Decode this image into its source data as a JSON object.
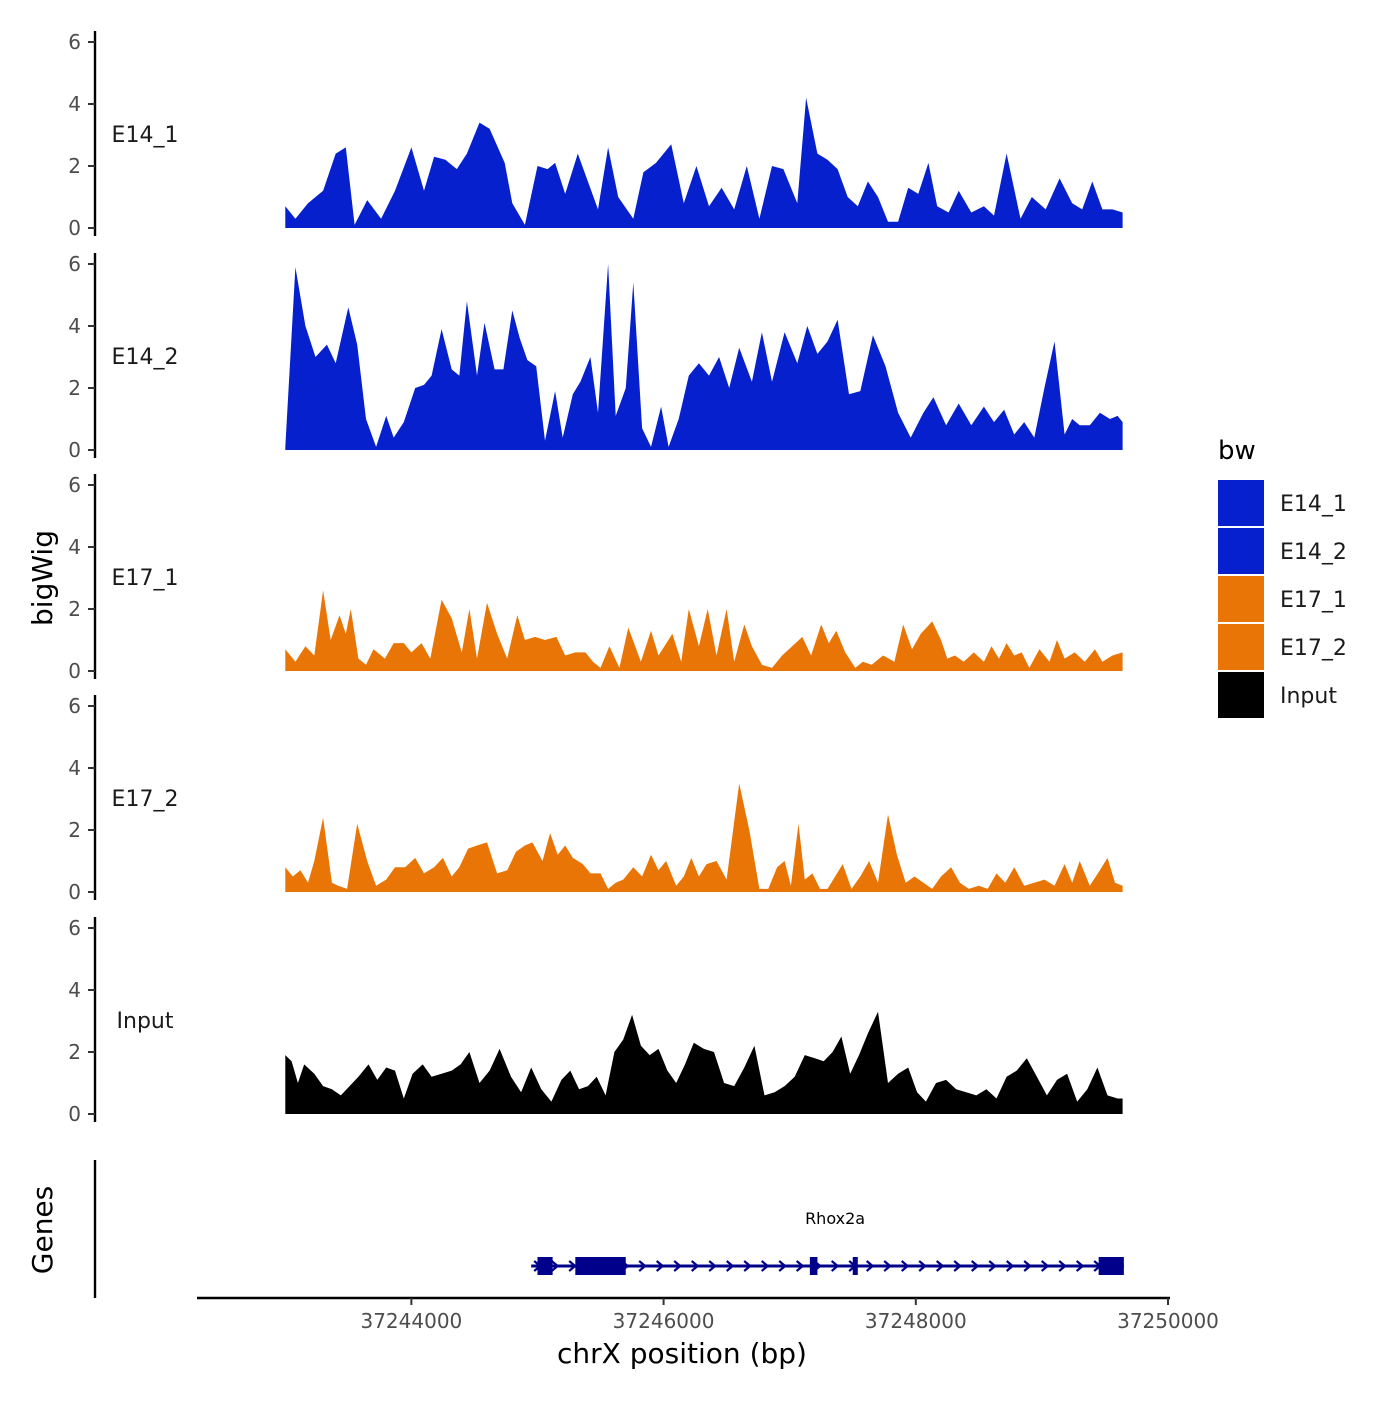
{
  "chart_data": {
    "type": "area",
    "ylabel": "bigWig",
    "genes_label": "Genes",
    "xlabel": "chrX position (bp)",
    "xlim": [
      37242300,
      37250000
    ],
    "ylim": [
      0,
      6
    ],
    "y_ticks": [
      0,
      2,
      4,
      6
    ],
    "x_ticks": [
      37244000,
      37246000,
      37248000,
      37250000
    ],
    "x_tick_labels": [
      "37244000",
      "37246000",
      "37248000",
      "37250000"
    ],
    "legend": {
      "title": "bw",
      "position": "right",
      "entries": [
        {
          "label": "E14_1",
          "color": "#0520CC"
        },
        {
          "label": "E14_2",
          "color": "#0520CC"
        },
        {
          "label": "E17_1",
          "color": "#E87506"
        },
        {
          "label": "E17_2",
          "color": "#E87506"
        },
        {
          "label": "Input",
          "color": "#000000"
        }
      ]
    },
    "series": [
      {
        "name": "E14_1",
        "color": "#0520CC",
        "x": [
          37243000,
          37243080,
          37243180,
          37243300,
          37243400,
          37243480,
          37243550,
          37243650,
          37243760,
          37243870,
          37244000,
          37244100,
          37244180,
          37244270,
          37244360,
          37244440,
          37244540,
          37244620,
          37244740,
          37244800,
          37244900,
          37245000,
          37245080,
          37245140,
          37245220,
          37245320,
          37245400,
          37245480,
          37245560,
          37245640,
          37245760,
          37245840,
          37245940,
          37246060,
          37246160,
          37246260,
          37246360,
          37246460,
          37246560,
          37246660,
          37246760,
          37246860,
          37246950,
          37247060,
          37247130,
          37247220,
          37247300,
          37247380,
          37247460,
          37247540,
          37247620,
          37247700,
          37247780,
          37247860,
          37247940,
          37248020,
          37248100,
          37248170,
          37248260,
          37248340,
          37248440,
          37248540,
          37248620,
          37248720,
          37248830,
          37248920,
          37249030,
          37249140,
          37249240,
          37249320,
          37249400,
          37249480,
          37249560,
          37249640
        ],
        "y": [
          0.7,
          0.3,
          0.8,
          1.2,
          2.4,
          2.6,
          0.1,
          0.9,
          0.3,
          1.2,
          2.6,
          1.2,
          2.3,
          2.2,
          1.9,
          2.4,
          3.4,
          3.2,
          2.1,
          0.8,
          0.1,
          2.0,
          1.9,
          2.1,
          1.1,
          2.4,
          1.5,
          0.6,
          2.6,
          1.0,
          0.3,
          1.8,
          2.1,
          2.7,
          0.8,
          2.0,
          0.7,
          1.3,
          0.6,
          2.0,
          0.3,
          2.0,
          1.9,
          0.8,
          4.2,
          2.4,
          2.2,
          1.9,
          1.0,
          0.7,
          1.5,
          1.0,
          0.2,
          0.2,
          1.3,
          1.1,
          2.1,
          0.7,
          0.5,
          1.2,
          0.5,
          0.7,
          0.4,
          2.4,
          0.3,
          1.0,
          0.6,
          1.6,
          0.8,
          0.6,
          1.5,
          0.6,
          0.6,
          0.5
        ]
      },
      {
        "name": "E14_2",
        "color": "#0520CC",
        "x": [
          37243000,
          37243080,
          37243160,
          37243240,
          37243330,
          37243400,
          37243500,
          37243570,
          37243640,
          37243720,
          37243800,
          37243860,
          37243940,
          37244030,
          37244100,
          37244160,
          37244240,
          37244320,
          37244380,
          37244440,
          37244520,
          37244580,
          37244660,
          37244730,
          37244800,
          37244860,
          37244920,
          37244990,
          37245060,
          37245140,
          37245200,
          37245280,
          37245340,
          37245420,
          37245480,
          37245560,
          37245620,
          37245700,
          37245760,
          37245830,
          37245900,
          37245980,
          37246040,
          37246120,
          37246200,
          37246280,
          37246360,
          37246440,
          37246520,
          37246600,
          37246700,
          37246780,
          37246860,
          37246960,
          37247060,
          37247140,
          37247220,
          37247300,
          37247380,
          37247470,
          37247560,
          37247660,
          37247760,
          37247860,
          37247960,
          37248060,
          37248140,
          37248240,
          37248340,
          37248440,
          37248540,
          37248620,
          37248700,
          37248780,
          37248860,
          37248940,
          37249020,
          37249100,
          37249180,
          37249240,
          37249300,
          37249380,
          37249460,
          37249540,
          37249600,
          37249640
        ],
        "y": [
          0.1,
          5.9,
          4.0,
          3.0,
          3.4,
          2.8,
          4.6,
          3.4,
          1.0,
          0.1,
          1.1,
          0.4,
          0.9,
          2.0,
          2.1,
          2.4,
          3.9,
          2.6,
          2.4,
          4.8,
          2.4,
          4.1,
          2.6,
          2.6,
          4.5,
          3.6,
          2.9,
          2.7,
          0.3,
          1.9,
          0.4,
          1.8,
          2.2,
          3.0,
          1.2,
          6.0,
          1.1,
          2.0,
          5.4,
          0.7,
          0.1,
          1.4,
          0.1,
          1.0,
          2.4,
          2.8,
          2.4,
          3.0,
          2.0,
          3.3,
          2.2,
          3.8,
          2.2,
          3.8,
          2.8,
          4.0,
          3.1,
          3.5,
          4.2,
          1.8,
          1.9,
          3.7,
          2.7,
          1.2,
          0.4,
          1.2,
          1.7,
          0.8,
          1.5,
          0.8,
          1.4,
          0.9,
          1.3,
          0.5,
          0.9,
          0.4,
          2.0,
          3.5,
          0.5,
          1.0,
          0.8,
          0.8,
          1.2,
          1.0,
          1.1,
          0.9
        ]
      },
      {
        "name": "E17_1",
        "color": "#E87506",
        "x": [
          37243000,
          37243080,
          37243160,
          37243230,
          37243300,
          37243360,
          37243430,
          37243480,
          37243520,
          37243580,
          37243640,
          37243700,
          37243790,
          37243860,
          37243940,
          37244000,
          37244080,
          37244150,
          37244240,
          37244320,
          37244400,
          37244460,
          37244520,
          37244600,
          37244680,
          37244760,
          37244840,
          37244900,
          37244980,
          37245060,
          37245150,
          37245220,
          37245300,
          37245380,
          37245440,
          37245500,
          37245570,
          37245650,
          37245720,
          37245820,
          37245900,
          37245960,
          37246070,
          37246140,
          37246200,
          37246280,
          37246350,
          37246420,
          37246500,
          37246560,
          37246640,
          37246700,
          37246780,
          37246860,
          37246940,
          37247020,
          37247100,
          37247170,
          37247250,
          37247310,
          37247370,
          37247440,
          37247520,
          37247580,
          37247650,
          37247740,
          37247830,
          37247900,
          37247970,
          37248040,
          37248130,
          37248200,
          37248250,
          37248310,
          37248380,
          37248460,
          37248540,
          37248600,
          37248660,
          37248720,
          37248780,
          37248840,
          37248900,
          37248980,
          37249060,
          37249120,
          37249180,
          37249260,
          37249340,
          37249420,
          37249480,
          37249560,
          37249640
        ],
        "y": [
          0.7,
          0.3,
          0.8,
          0.5,
          2.6,
          1.0,
          1.8,
          1.2,
          2.0,
          0.4,
          0.2,
          0.7,
          0.4,
          0.9,
          0.9,
          0.6,
          0.9,
          0.4,
          2.3,
          1.7,
          0.6,
          2.0,
          0.4,
          2.2,
          1.2,
          0.4,
          1.8,
          1.0,
          1.1,
          1.0,
          1.1,
          0.5,
          0.6,
          0.6,
          0.3,
          0.1,
          0.8,
          0.1,
          1.4,
          0.3,
          1.3,
          0.5,
          1.2,
          0.3,
          2.0,
          0.8,
          2.0,
          0.5,
          2.0,
          0.3,
          1.5,
          0.8,
          0.2,
          0.1,
          0.5,
          0.8,
          1.1,
          0.5,
          1.5,
          0.9,
          1.3,
          0.6,
          0.1,
          0.3,
          0.2,
          0.5,
          0.3,
          1.5,
          0.7,
          1.2,
          1.6,
          1.0,
          0.4,
          0.5,
          0.3,
          0.6,
          0.3,
          0.8,
          0.4,
          0.9,
          0.5,
          0.6,
          0.1,
          0.7,
          0.3,
          1.0,
          0.4,
          0.6,
          0.3,
          0.7,
          0.3,
          0.5,
          0.6
        ]
      },
      {
        "name": "E17_2",
        "color": "#E87506",
        "x": [
          37243000,
          37243060,
          37243120,
          37243180,
          37243230,
          37243300,
          37243370,
          37243420,
          37243490,
          37243570,
          37243650,
          37243720,
          37243800,
          37243870,
          37243950,
          37244030,
          37244100,
          37244180,
          37244250,
          37244320,
          37244380,
          37244450,
          37244520,
          37244600,
          37244680,
          37244760,
          37244830,
          37244900,
          37244960,
          37245040,
          37245100,
          37245160,
          37245220,
          37245280,
          37245360,
          37245420,
          37245500,
          37245560,
          37245620,
          37245680,
          37245760,
          37245830,
          37245900,
          37245960,
          37246020,
          37246100,
          37246160,
          37246220,
          37246280,
          37246340,
          37246420,
          37246500,
          37246600,
          37246680,
          37246760,
          37246830,
          37246900,
          37246960,
          37247010,
          37247070,
          37247120,
          37247180,
          37247240,
          37247300,
          37247360,
          37247420,
          37247490,
          37247560,
          37247630,
          37247700,
          37247780,
          37247850,
          37247920,
          37247990,
          37248060,
          37248130,
          37248200,
          37248280,
          37248350,
          37248420,
          37248500,
          37248570,
          37248640,
          37248710,
          37248780,
          37248860,
          37248940,
          37249020,
          37249100,
          37249180,
          37249240,
          37249300,
          37249380,
          37249460,
          37249520,
          37249580,
          37249640
        ],
        "y": [
          0.8,
          0.5,
          0.7,
          0.3,
          1.0,
          2.4,
          0.3,
          0.2,
          0.1,
          2.2,
          1.0,
          0.2,
          0.4,
          0.8,
          0.8,
          1.1,
          0.6,
          0.8,
          1.1,
          0.5,
          0.8,
          1.4,
          1.5,
          1.6,
          0.6,
          0.7,
          1.3,
          1.5,
          1.6,
          1.0,
          1.9,
          1.2,
          1.5,
          1.1,
          0.9,
          0.6,
          0.6,
          0.1,
          0.3,
          0.4,
          0.8,
          0.5,
          1.2,
          0.7,
          1.0,
          0.2,
          0.5,
          1.1,
          0.5,
          0.9,
          1.0,
          0.4,
          3.5,
          2.0,
          0.1,
          0.1,
          0.8,
          1.0,
          0.2,
          2.2,
          0.4,
          0.6,
          0.1,
          0.1,
          0.5,
          0.9,
          0.1,
          0.5,
          1.0,
          0.3,
          2.5,
          1.2,
          0.3,
          0.5,
          0.3,
          0.1,
          0.5,
          0.8,
          0.3,
          0.1,
          0.2,
          0.1,
          0.6,
          0.3,
          0.8,
          0.2,
          0.3,
          0.4,
          0.2,
          0.9,
          0.3,
          1.0,
          0.2,
          0.7,
          1.1,
          0.3,
          0.2
        ]
      },
      {
        "name": "Input",
        "color": "#000000",
        "x": [
          37243000,
          37243050,
          37243100,
          37243150,
          37243230,
          37243300,
          37243370,
          37243440,
          37243510,
          37243580,
          37243660,
          37243730,
          37243800,
          37243870,
          37243940,
          37244010,
          37244090,
          37244160,
          37244240,
          37244320,
          37244390,
          37244460,
          37244540,
          37244620,
          37244700,
          37244790,
          37244870,
          37244950,
          37245030,
          37245110,
          37245190,
          37245260,
          37245330,
          37245400,
          37245470,
          37245540,
          37245610,
          37245680,
          37245750,
          37245820,
          37245890,
          37245960,
          37246030,
          37246100,
          37246170,
          37246240,
          37246320,
          37246400,
          37246480,
          37246560,
          37246640,
          37246720,
          37246800,
          37246880,
          37246960,
          37247040,
          37247120,
          37247200,
          37247270,
          37247340,
          37247410,
          37247480,
          37247550,
          37247620,
          37247700,
          37247780,
          37247860,
          37247940,
          37248010,
          37248080,
          37248160,
          37248240,
          37248320,
          37248400,
          37248480,
          37248560,
          37248640,
          37248720,
          37248800,
          37248880,
          37248960,
          37249040,
          37249120,
          37249200,
          37249280,
          37249360,
          37249440,
          37249520,
          37249600,
          37249640
        ],
        "y": [
          1.9,
          1.7,
          1.0,
          1.6,
          1.3,
          0.9,
          0.8,
          0.6,
          0.9,
          1.2,
          1.6,
          1.1,
          1.5,
          1.4,
          0.5,
          1.3,
          1.6,
          1.2,
          1.3,
          1.4,
          1.6,
          2.0,
          1.0,
          1.4,
          2.1,
          1.2,
          0.7,
          1.5,
          0.8,
          0.4,
          1.1,
          1.4,
          0.8,
          0.9,
          1.2,
          0.6,
          2.0,
          2.4,
          3.2,
          2.2,
          1.9,
          2.1,
          1.4,
          1.0,
          1.6,
          2.3,
          2.1,
          2.0,
          1.0,
          0.9,
          1.5,
          2.2,
          0.6,
          0.7,
          0.9,
          1.2,
          1.9,
          1.8,
          1.7,
          2.0,
          2.5,
          1.3,
          1.9,
          2.6,
          3.3,
          1.0,
          1.3,
          1.5,
          0.7,
          0.4,
          1.0,
          1.1,
          0.8,
          0.7,
          0.6,
          0.8,
          0.5,
          1.2,
          1.4,
          1.8,
          1.2,
          0.6,
          1.1,
          1.3,
          0.4,
          0.8,
          1.5,
          0.6,
          0.5,
          0.5
        ]
      }
    ],
    "gene": {
      "name": "Rhox2a",
      "start": 37244950,
      "end": 37249650,
      "strand": "+",
      "color": "#00008B",
      "exons": [
        {
          "start": 37245000,
          "end": 37245120
        },
        {
          "start": 37245300,
          "end": 37245700
        },
        {
          "start": 37247160,
          "end": 37247220
        },
        {
          "start": 37247500,
          "end": 37247540
        },
        {
          "start": 37249450,
          "end": 37249650
        }
      ]
    }
  }
}
